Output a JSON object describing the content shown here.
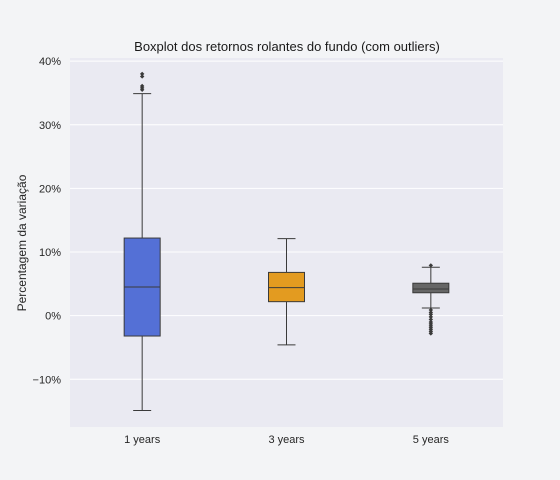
{
  "chart_data": {
    "type": "boxplot",
    "title": "Boxplot dos retornos rolantes do fundo (com outliers)",
    "xlabel": "",
    "ylabel": "Percentagem da variação",
    "ylim": [
      -17.5,
      40.5
    ],
    "yticks": [
      -10,
      0,
      10,
      20,
      30,
      40
    ],
    "ytick_labels": [
      "−10%",
      "0%",
      "10%",
      "20%",
      "30%",
      "40%"
    ],
    "grid": true,
    "categories": [
      "1 years",
      "3 years",
      "5 years"
    ],
    "boxes": [
      {
        "category": "1 years",
        "color": "#5470d6",
        "whisker_low": -14.9,
        "q1": -3.2,
        "median": 4.5,
        "q3": 12.2,
        "whisker_high": 34.9,
        "outliers": [
          35.5,
          35.8,
          36.1,
          37.6,
          38.0
        ]
      },
      {
        "category": "3 years",
        "color": "#e39b20",
        "whisker_low": -4.6,
        "q1": 2.2,
        "median": 4.4,
        "q3": 6.8,
        "whisker_high": 12.1,
        "outliers": []
      },
      {
        "category": "5 years",
        "color": "#666666",
        "whisker_low": 1.2,
        "q1": 3.6,
        "median": 4.2,
        "q3": 5.1,
        "whisker_high": 7.6,
        "outliers": [
          7.9,
          0.9,
          0.5,
          0.2,
          -0.2,
          -0.6,
          -1.0,
          -1.3,
          -1.6,
          -1.9,
          -2.2,
          -2.5,
          -2.8
        ]
      }
    ]
  }
}
